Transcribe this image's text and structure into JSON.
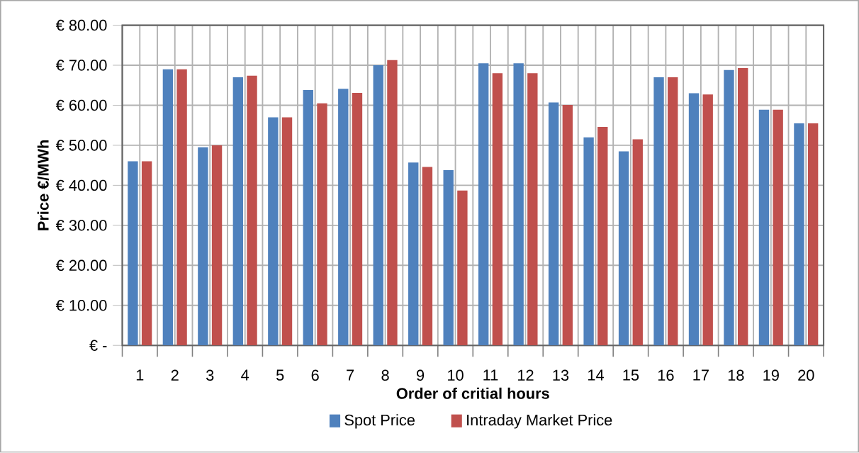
{
  "chart_data": {
    "type": "bar",
    "xlabel": "Order of critial hours",
    "ylabel": "Price  €/MWh",
    "categories": [
      "1",
      "2",
      "3",
      "4",
      "5",
      "6",
      "7",
      "8",
      "9",
      "10",
      "11",
      "12",
      "13",
      "14",
      "15",
      "16",
      "17",
      "18",
      "19",
      "20"
    ],
    "series": [
      {
        "name": "Spot Price",
        "color": "#4f81bd",
        "values": [
          46,
          69,
          49.5,
          67,
          57,
          63.8,
          64.1,
          70,
          45.7,
          43.8,
          70.5,
          70.5,
          60.7,
          52,
          48.5,
          67,
          63,
          68.8,
          58.9,
          55.5
        ]
      },
      {
        "name": "Intraday Market Price",
        "color": "#c0504d",
        "values": [
          46,
          69,
          50,
          67.4,
          57,
          60.5,
          63.1,
          71.3,
          44.6,
          38.7,
          68,
          68,
          60.1,
          54.6,
          51.5,
          67,
          62.7,
          69.3,
          58.9,
          55.5
        ]
      }
    ],
    "ylim": [
      0,
      80
    ],
    "yticks": [
      {
        "value": 0,
        "label": "€ -"
      },
      {
        "value": 10,
        "label": "€ 10.00"
      },
      {
        "value": 20,
        "label": "€ 20.00"
      },
      {
        "value": 30,
        "label": "€ 30.00"
      },
      {
        "value": 40,
        "label": "€ 40.00"
      },
      {
        "value": 50,
        "label": "€ 50.00"
      },
      {
        "value": 60,
        "label": "€ 60.00"
      },
      {
        "value": 70,
        "label": "€ 70.00"
      },
      {
        "value": 80,
        "label": "€ 80.00"
      }
    ],
    "grid": true,
    "legend": "bottom"
  }
}
